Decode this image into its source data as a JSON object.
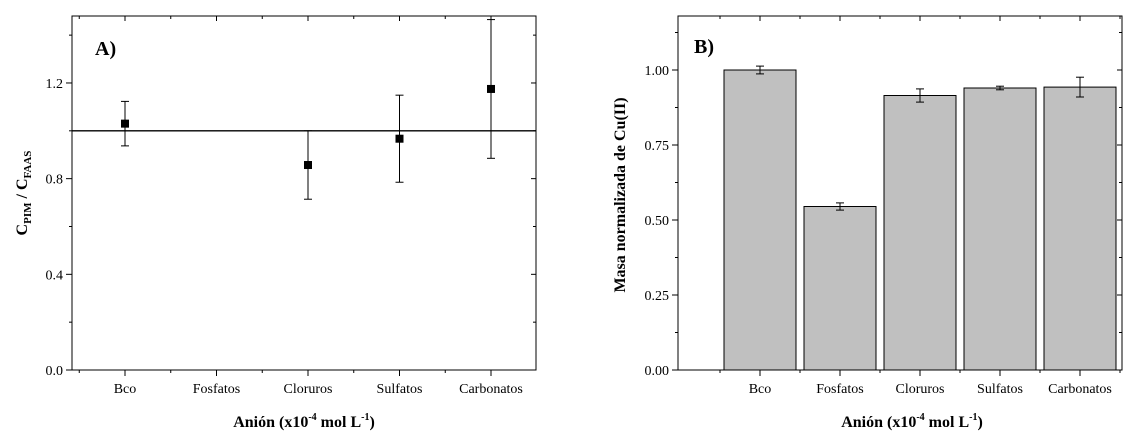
{
  "chart_data": [
    {
      "type": "scatter",
      "panel_label": "A)",
      "categories": [
        "Bco",
        "Fosfatos",
        "Cloruros",
        "Sulfatos",
        "Carbonatos"
      ],
      "series": [
        {
          "values": [
            1.03,
            null,
            0.857,
            0.967,
            1.175
          ],
          "errors": [
            0.093,
            null,
            0.143,
            0.182,
            0.29
          ]
        }
      ],
      "reference_line": 1.0,
      "ylim": [
        0.0,
        1.48
      ],
      "yticks": [
        "0.0",
        "0.4",
        "0.8",
        "1.2"
      ],
      "ylabel": {
        "main": "C",
        "sub1": "PIM",
        "mid": " / C",
        "sub2": "FAAS"
      },
      "xlabel": {
        "main": "Anión (x10",
        "sup1": "-4",
        "mid": " mol L",
        "sup2": "-1",
        "end": ")"
      },
      "grid": false,
      "marker_color": "#000000"
    },
    {
      "type": "bar",
      "panel_label": "B)",
      "categories": [
        "Bco",
        "Fosfatos",
        "Cloruros",
        "Sulfatos",
        "Carbonatos"
      ],
      "series": [
        {
          "values": [
            1.0,
            0.545,
            0.915,
            0.94,
            0.943
          ],
          "errors": [
            0.013,
            0.012,
            0.022,
            0.006,
            0.033
          ]
        }
      ],
      "ylim": [
        0.0,
        1.18
      ],
      "yticks": [
        "0.00",
        "0.25",
        "0.50",
        "0.75",
        "1.00"
      ],
      "ylabel": "Masa normalizada de Cu(II)",
      "xlabel": {
        "main": "Anión (x10",
        "sup1": "-4",
        "mid": " mol L",
        "sup2": "-1",
        "end": ")"
      },
      "grid": false,
      "bar_color": "#c0c0c0"
    }
  ]
}
